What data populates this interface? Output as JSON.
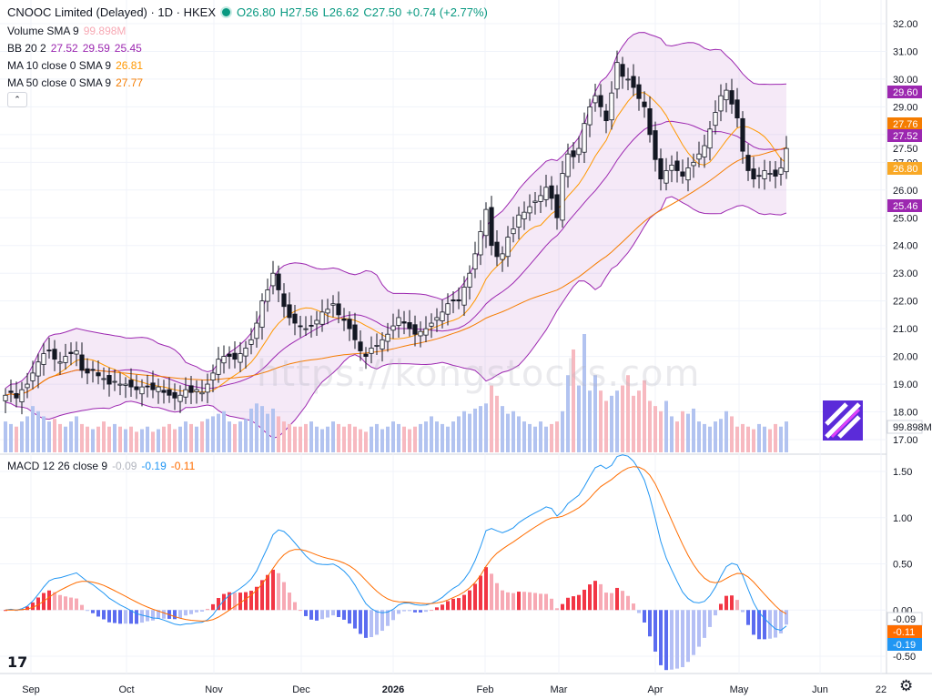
{
  "header": {
    "title": "CNOOC Limited (Delayed) · 1D · HKEX",
    "ohlc": {
      "o": "O26.80",
      "h": "H27.56",
      "l": "L26.62",
      "c": "C27.50",
      "chg": "+0.74 (+2.77%)"
    },
    "volume_label": "Volume SMA 9",
    "volume_value": "99.898M",
    "bb_label": "BB 20 2",
    "bb_values": [
      "27.52",
      "29.59",
      "25.45"
    ],
    "ma10_label": "MA 10 close 0 SMA 9",
    "ma10_value": "26.81",
    "ma50_label": "MA 50 close 0 SMA 9",
    "ma50_value": "27.77",
    "macd_label": "MACD 12 26 close 9",
    "macd_values": [
      "-0.09",
      "-0.19",
      "-0.11"
    ],
    "collapse_icon": "chevron-up-icon"
  },
  "watermark": "https://kongstocks.com",
  "colors": {
    "up": "#089981",
    "down": "#f23645",
    "bb": "#9c27b0",
    "ma10": "#ff9800",
    "macd": "#2196f3",
    "signal": "#ff6d00"
  },
  "chart_data": [
    {
      "type": "candlestick",
      "title": "CNOOC Limited (Delayed) · 1D · HKEX",
      "x_labels": [
        "Sep",
        "Oct",
        "Nov",
        "Dec",
        "2026",
        "Feb",
        "Mar",
        "Apr",
        "May",
        "Jun",
        "22"
      ],
      "y_ticks": [
        "32.00",
        "31.00",
        "30.00",
        "29.00",
        "28.00",
        "27.50",
        "27.00",
        "26.00",
        "25.00",
        "24.00",
        "23.00",
        "22.00",
        "21.00",
        "20.00",
        "19.00",
        "18.00",
        "17.00"
      ],
      "ylim": [
        17,
        32
      ],
      "price_tags": [
        {
          "label": "29.60",
          "color": "#9c27b0"
        },
        {
          "label": "27.76",
          "color": "#f57c00"
        },
        {
          "label": "27.52",
          "color": "#9c27b0"
        },
        {
          "label": "26.80",
          "color": "#f9a825"
        },
        {
          "label": "25.46",
          "color": "#9c27b0"
        },
        {
          "label": "99.898M",
          "color": "#ffffff"
        }
      ],
      "close": [
        18.6,
        18.7,
        18.5,
        18.8,
        19.0,
        19.4,
        19.8,
        20.1,
        20.2,
        19.9,
        19.8,
        20.0,
        20.1,
        20.2,
        19.5,
        19.4,
        19.5,
        19.3,
        19.2,
        19.0,
        19.1,
        19.0,
        19.0,
        18.9,
        18.8,
        18.9,
        18.9,
        18.8,
        18.9,
        18.7,
        18.6,
        18.5,
        18.6,
        18.8,
        18.7,
        18.8,
        18.7,
        19.0,
        19.4,
        19.9,
        20.0,
        20.0,
        19.9,
        20.1,
        20.3,
        20.6,
        21.2,
        22.0,
        22.4,
        23.0,
        22.4,
        21.8,
        21.4,
        21.2,
        21.1,
        21.0,
        21.1,
        21.3,
        21.6,
        21.7,
        21.9,
        21.5,
        21.3,
        21.0,
        20.6,
        20.2,
        20.0,
        20.3,
        20.4,
        20.6,
        20.8,
        21.1,
        21.4,
        21.2,
        21.0,
        20.8,
        20.9,
        21.0,
        21.2,
        21.4,
        21.6,
        21.9,
        22.0,
        22.0,
        22.5,
        23.0,
        23.7,
        24.5,
        25.3,
        24.0,
        23.6,
        23.7,
        24.3,
        24.6,
        25.1,
        25.2,
        25.4,
        25.6,
        25.8,
        26.1,
        25.7,
        25.0,
        26.6,
        27.3,
        27.2,
        27.5,
        28.4,
        29.0,
        29.4,
        29.0,
        28.5,
        29.5,
        30.6,
        30.1,
        30.0,
        29.7,
        29.3,
        29.0,
        28.0,
        27.1,
        26.4,
        26.7,
        26.9,
        26.7,
        26.5,
        26.8,
        27.0,
        27.3,
        27.6,
        28.2,
        28.8,
        29.4,
        29.6,
        29.1,
        28.6,
        27.4,
        26.7,
        26.4,
        26.5,
        26.7,
        26.6,
        26.5,
        26.8,
        27.5
      ],
      "volume": [
        0.6,
        0.55,
        0.5,
        0.6,
        0.7,
        0.9,
        0.8,
        0.7,
        0.6,
        0.65,
        0.55,
        0.5,
        0.6,
        0.7,
        0.55,
        0.5,
        0.45,
        0.5,
        0.6,
        0.5,
        0.55,
        0.5,
        0.45,
        0.5,
        0.4,
        0.45,
        0.5,
        0.4,
        0.45,
        0.5,
        0.55,
        0.45,
        0.5,
        0.6,
        0.55,
        0.5,
        0.6,
        0.65,
        0.7,
        0.75,
        0.8,
        0.6,
        0.55,
        0.6,
        0.65,
        0.85,
        0.95,
        0.9,
        0.75,
        0.85,
        0.7,
        0.6,
        0.55,
        0.5,
        0.5,
        0.55,
        0.6,
        0.5,
        0.45,
        0.5,
        0.6,
        0.55,
        0.5,
        0.55,
        0.5,
        0.45,
        0.4,
        0.5,
        0.55,
        0.45,
        0.5,
        0.6,
        0.55,
        0.5,
        0.45,
        0.5,
        0.55,
        0.6,
        0.7,
        0.6,
        0.55,
        0.5,
        0.6,
        0.7,
        0.8,
        0.75,
        0.85,
        0.9,
        0.95,
        1.3,
        1.1,
        0.9,
        0.75,
        0.8,
        0.7,
        0.6,
        0.55,
        0.5,
        0.6,
        0.5,
        0.55,
        0.6,
        0.8,
        1.5,
        2.0,
        1.3,
        2.3,
        1.2,
        1.5,
        1.2,
        1.0,
        1.1,
        1.2,
        1.3,
        1.5,
        1.1,
        1.2,
        1.4,
        1.0,
        0.9,
        0.8,
        1.0,
        0.7,
        0.6,
        0.8,
        0.75,
        0.85,
        0.6,
        0.55,
        0.5,
        0.6,
        0.65,
        0.8,
        0.7,
        0.5,
        0.55,
        0.5,
        0.45,
        0.55,
        0.5,
        0.45,
        0.55,
        0.5,
        0.6
      ]
    },
    {
      "type": "macd",
      "title": "MACD 12 26 close 9",
      "y_ticks": [
        "1.50",
        "1.00",
        "0.50",
        "0.00",
        "-0.50"
      ],
      "ylim": [
        -0.6,
        1.6
      ],
      "value_tags": [
        {
          "label": "-0.09",
          "color": "#ffffff"
        },
        {
          "label": "-0.11",
          "color": "#ff6d00"
        },
        {
          "label": "-0.19",
          "color": "#2196f3"
        }
      ]
    }
  ]
}
